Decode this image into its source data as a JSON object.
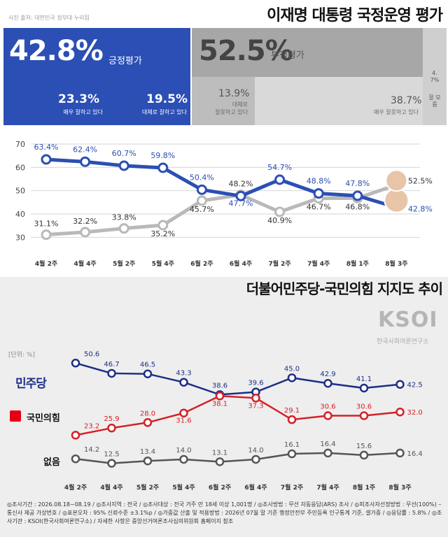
{
  "header": {
    "photo_credit": "사진 출처: 대한민국 정부대 누리집",
    "title": "이재명 대통령 국정운영 평가"
  },
  "approval": {
    "positive_value": "42.8%",
    "positive_label": "긍정평가",
    "very_good_value": "23.3%",
    "very_good_label": "매우 잘하고 있다",
    "fairly_good_value": "19.5%",
    "fairly_good_label": "대체로 잘하고 있다",
    "negative_value": "52.5%",
    "negative_label": "부정평가",
    "fairly_bad_value": "13.9%",
    "fairly_bad_label1": "대체로",
    "fairly_bad_label2": "잘못하고 있다",
    "very_bad_value": "38.7%",
    "very_bad_label": "매우 잘못하고 있다",
    "dk_value": "4.7%",
    "dk_label": "잘 모름"
  },
  "party_section": {
    "title": "더불어민주당-국민의힘 지지도 추이",
    "brand": "KSOI",
    "brand_sub": "한국사회여론연구소",
    "unit": "[단위: %]",
    "dem_label": "민주당",
    "ppp_label": "국민의힘",
    "none_label": "없음"
  },
  "footnote": "◎조사기간 : 2026.08.18~08.19 / ◎조사지역 : 전국 / ◎조사대상 : 전국 거주 만 18세 이상 1,001명 / ◎조사방법 : 무선 자동응답(ARS) 조사 / ◎피조사자선정방법 : 무선(100%) – 통신사 제공 가상번호 / ◎표본오차 : 95% 신뢰수준 ±3.1%p / ◎가중값 산출 및 적용방법 : 2026년 07월 말 기준 행정안전부 주민등록 인구통계 기준, 셀가중 / ◎응답률 : 5.8% / ◎조사기관 : KSOI(한국사회여론연구소) / 자세한 사항은 중앙선거여론조사심의위원회 홈페이지 참조",
  "chart_data": [
    {
      "type": "line",
      "categories": [
        "4월 2주",
        "4월 4주",
        "5월 2주",
        "5월 4주",
        "6월 2주",
        "6월 4주",
        "7월 2주",
        "7월 4주",
        "8월 1주",
        "8월 3주"
      ],
      "ylim": [
        25,
        70
      ],
      "yticks": [
        30,
        40,
        50,
        60,
        70
      ],
      "grid": true,
      "series": [
        {
          "values": [
            63.4,
            62.4,
            60.7,
            59.8,
            50.4,
            47.7,
            54.7,
            48.8,
            47.8,
            42.8
          ],
          "labels": [
            "63.4%",
            "62.4%",
            "60.7%",
            "59.8%",
            "50.4%",
            "47.7%",
            "54.7%",
            "48.8%",
            "47.8%",
            "42.8%"
          ],
          "color": "#2b4fb4"
        },
        {
          "values": [
            31.1,
            32.2,
            33.8,
            35.2,
            45.7,
            48.2,
            40.9,
            46.7,
            46.8,
            52.5
          ],
          "labels": [
            "31.1%",
            "32.2%",
            "33.8%",
            "35.2%",
            "45.7%",
            "48.2%",
            "40.9%",
            "46.7%",
            "46.8%",
            "52.5%"
          ],
          "color": "#b9b9b9"
        }
      ]
    },
    {
      "type": "line",
      "categories": [
        "4월 2주",
        "4월 4주",
        "5월 2주",
        "5월 4주",
        "6월 2주",
        "6월 4주",
        "7월 2주",
        "7월 4주",
        "8월 1주",
        "8월 3주"
      ],
      "ylim": [
        10,
        52
      ],
      "series": [
        {
          "name": "민주당",
          "values": [
            50.6,
            46.7,
            46.5,
            43.3,
            38.6,
            39.6,
            45.0,
            42.9,
            41.1,
            42.5
          ],
          "color": "#1e2e86"
        },
        {
          "name": "국민의힘",
          "values": [
            23.2,
            25.9,
            28.0,
            31.6,
            38.1,
            37.3,
            29.1,
            30.6,
            30.6,
            32.0
          ],
          "color": "#d42027"
        },
        {
          "name": "없음",
          "values": [
            14.2,
            12.5,
            13.4,
            14.0,
            13.1,
            14.0,
            16.1,
            16.4,
            15.6,
            16.4
          ],
          "color": "#555555"
        }
      ]
    }
  ]
}
